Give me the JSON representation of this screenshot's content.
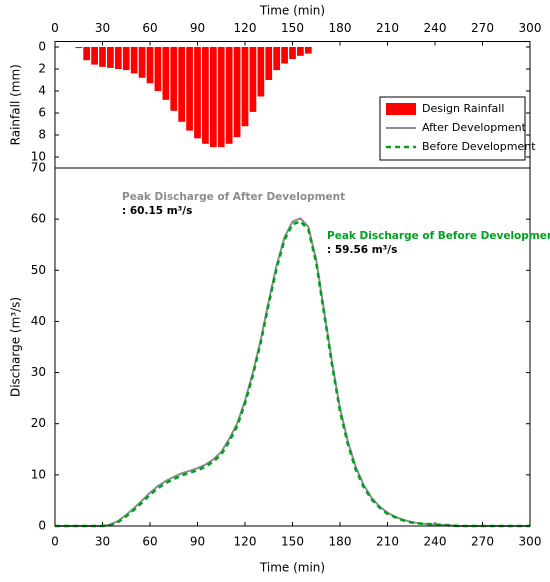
{
  "chart_data": [
    {
      "type": "bar",
      "xlabel": "Time (min)",
      "ylabel": "Rainfall (mm)",
      "xlim": [
        0,
        300
      ],
      "xticks": [
        0,
        30,
        60,
        90,
        120,
        150,
        180,
        210,
        240,
        270,
        300
      ],
      "ylim": [
        -0.5,
        11
      ],
      "yticks": [
        0,
        2,
        4,
        6,
        8,
        10
      ],
      "y_inverted": true,
      "x_axis_position": "top",
      "x": [
        15,
        20,
        25,
        30,
        35,
        40,
        45,
        50,
        55,
        60,
        65,
        70,
        75,
        80,
        85,
        90,
        95,
        100,
        105,
        110,
        115,
        120,
        125,
        130,
        135,
        140,
        145,
        150,
        155,
        160
      ],
      "series": [
        {
          "name": "Design Rainfall",
          "color": "#ff0000",
          "values": [
            0.1,
            1.2,
            1.6,
            1.8,
            1.9,
            2.0,
            2.1,
            2.4,
            2.8,
            3.3,
            4.0,
            4.8,
            5.8,
            6.8,
            7.6,
            8.3,
            8.8,
            9.1,
            9.1,
            8.8,
            8.2,
            7.2,
            5.9,
            4.5,
            3.0,
            2.1,
            1.5,
            1.1,
            0.8,
            0.6
          ]
        }
      ]
    },
    {
      "type": "line",
      "xlabel": "Time (min)",
      "ylabel": "Discharge (m³/s)",
      "xlim": [
        0,
        300
      ],
      "xticks": [
        0,
        30,
        60,
        90,
        120,
        150,
        180,
        210,
        240,
        270,
        300
      ],
      "ylim": [
        0,
        70
      ],
      "yticks": [
        0,
        10,
        20,
        30,
        40,
        50,
        60,
        70
      ],
      "x": [
        0,
        5,
        10,
        15,
        20,
        25,
        30,
        35,
        40,
        45,
        50,
        55,
        60,
        65,
        70,
        75,
        80,
        85,
        90,
        95,
        100,
        105,
        110,
        115,
        120,
        125,
        130,
        135,
        140,
        145,
        150,
        155,
        160,
        165,
        170,
        175,
        180,
        185,
        190,
        195,
        200,
        205,
        210,
        215,
        220,
        225,
        230,
        235,
        240,
        245,
        250,
        255,
        260,
        265,
        270,
        275,
        280,
        285,
        290,
        295,
        300
      ],
      "series": [
        {
          "name": "After Development",
          "color": "#8c8c8c",
          "style": "solid",
          "values": [
            0,
            0,
            0,
            0,
            0,
            0,
            0,
            0.3,
            1,
            2.2,
            3.5,
            5,
            6.5,
            7.8,
            8.8,
            9.6,
            10.3,
            10.8,
            11.3,
            12,
            13,
            14.5,
            17,
            20,
            24.5,
            30,
            36.5,
            44,
            51,
            56.5,
            59.5,
            60.15,
            58.5,
            52,
            42,
            32,
            23,
            16.5,
            11.5,
            8,
            5.5,
            3.8,
            2.6,
            1.8,
            1.2,
            0.8,
            0.5,
            0.4,
            0.3,
            0.2,
            0.1,
            0,
            0,
            0,
            0,
            0,
            0,
            0,
            0,
            0,
            0
          ]
        },
        {
          "name": "Before Development",
          "color": "#00a020",
          "style": "dashed",
          "values": [
            0,
            0,
            0,
            0,
            0,
            0,
            0,
            0.2,
            0.8,
            1.9,
            3.2,
            4.6,
            6.1,
            7.4,
            8.4,
            9.2,
            9.9,
            10.4,
            10.9,
            11.6,
            12.6,
            14,
            16.5,
            19.5,
            24,
            29.5,
            36,
            43.5,
            50.5,
            56,
            59,
            59.56,
            58,
            51.5,
            41.5,
            31.5,
            22.5,
            16,
            11,
            7.6,
            5.2,
            3.6,
            2.4,
            1.7,
            1.1,
            0.7,
            0.5,
            0.4,
            0.3,
            0.2,
            0.1,
            0,
            0,
            0,
            0,
            0,
            0,
            0,
            0,
            0,
            0
          ]
        }
      ],
      "annotations": [
        "Peak Discharge of After Development",
        ": 60.15 m³/s",
        "Peak Discharge of Before Development",
        ": 59.56 m³/s"
      ]
    }
  ]
}
